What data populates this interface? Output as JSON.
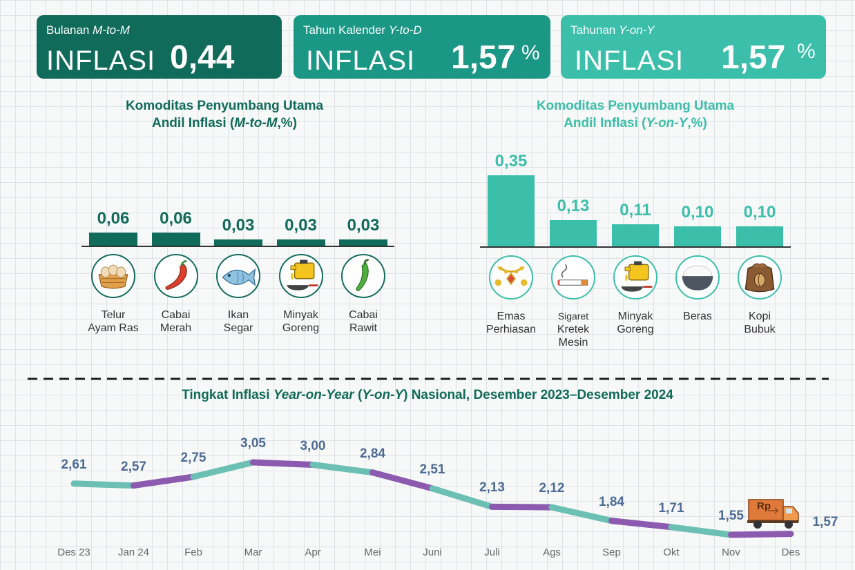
{
  "cards": [
    {
      "prefix": "Bulanan ",
      "period": "M-to-M",
      "label": "INFLASI",
      "value": "0,44",
      "unit": "%",
      "color": "#106b5a"
    },
    {
      "prefix": "Tahun Kalender ",
      "period": "Y-to-D",
      "label": "INFLASI",
      "value": "1,57",
      "unit": "%",
      "color": "#1a9785"
    },
    {
      "prefix": "Tahunan ",
      "period": "Y-on-Y",
      "label": "INFLASI",
      "value": "1,57",
      "unit": "%",
      "color": "#3bbfaa"
    }
  ],
  "mtm": {
    "title1": "Komoditas Penyumbang Utama",
    "title2a": "Andil Inflasi (",
    "title2b": "M-to-M",
    "title2c": ",%)",
    "color": "#106b5a"
  },
  "yoy": {
    "title1": "Komoditas Penyumbang Utama",
    "title2a": "Andil Inflasi (",
    "title2b": "Y-on-Y",
    "title2c": ",%)",
    "color": "#3bbfaa"
  },
  "line": {
    "title_a": "Tingkat Inflasi ",
    "title_b": "Year-on-Year",
    "title_c": " (",
    "title_d": "Y-on-Y",
    "title_e": ") Nasional, Desember 2023–Desember   2024",
    "colors": [
      "#6cc0b3",
      "#8c5bb0"
    ]
  },
  "chart_data": [
    {
      "type": "bar",
      "categories": [
        "Telur Ayam Ras",
        "Cabai Merah",
        "Ikan Segar",
        "Minyak Goreng",
        "Cabai Rawit"
      ],
      "category_lines": [
        [
          "Telur",
          "Ayam Ras"
        ],
        [
          "Cabai",
          "Merah"
        ],
        [
          "Ikan",
          "Segar"
        ],
        [
          "Minyak",
          "Goreng"
        ],
        [
          "Cabai",
          "Rawit"
        ]
      ],
      "values": [
        0.06,
        0.06,
        0.03,
        0.03,
        0.03
      ],
      "labels": [
        "0,06",
        "0,06",
        "0,03",
        "0,03",
        "0,03"
      ],
      "icons": [
        "egg-basket-icon",
        "red-chili-icon",
        "fish-icon",
        "cooking-oil-icon",
        "green-chili-icon"
      ]
    },
    {
      "type": "bar",
      "categories": [
        "Emas Perhiasan",
        "Sigaret Kretek Mesin",
        "Minyak Goreng",
        "Beras",
        "Kopi Bubuk"
      ],
      "category_lines": [
        [
          "Emas",
          "Perhiasan"
        ],
        [
          "Sigaret",
          "Kretek",
          "Mesin"
        ],
        [
          "Minyak",
          "Goreng"
        ],
        [
          "Beras"
        ],
        [
          "Kopi",
          "Bubuk"
        ]
      ],
      "values": [
        0.35,
        0.13,
        0.11,
        0.1,
        0.1
      ],
      "labels": [
        "0,35",
        "0,13",
        "0,11",
        "0,10",
        "0,10"
      ],
      "icons": [
        "gold-jewelry-icon",
        "cigarette-icon",
        "cooking-oil-icon",
        "rice-bowl-icon",
        "coffee-sack-icon"
      ]
    },
    {
      "type": "line",
      "x": [
        "Des 23",
        "Jan 24",
        "Feb",
        "Mar",
        "Apr",
        "Mei",
        "Juni",
        "Juli",
        "Ags",
        "Sep",
        "Okt",
        "Nov",
        "Des"
      ],
      "values": [
        2.61,
        2.57,
        2.75,
        3.05,
        3.0,
        2.84,
        2.51,
        2.13,
        2.12,
        1.84,
        1.71,
        1.55,
        1.57
      ],
      "labels": [
        "2,61",
        "2,57",
        "2,75",
        "3,05",
        "3,00",
        "2,84",
        "2,51",
        "2,13",
        "2,12",
        "1,84",
        "1,71",
        "1,55",
        "1,57"
      ]
    }
  ],
  "truck_label": "Rp"
}
